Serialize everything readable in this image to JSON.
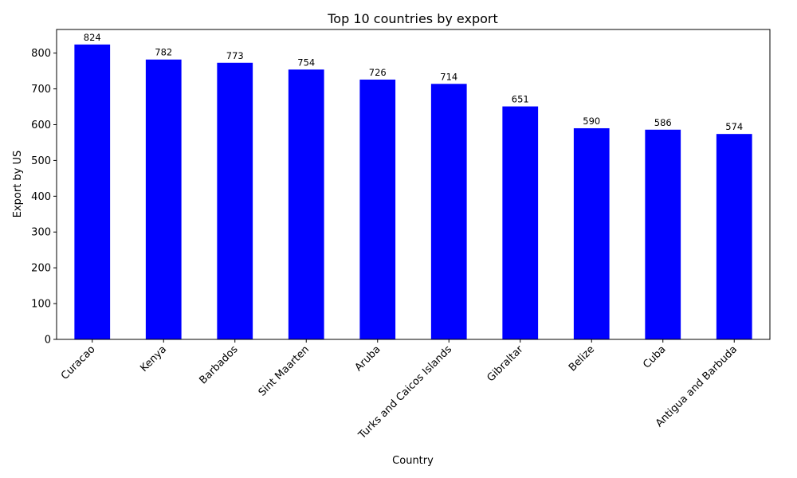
{
  "chart_data": {
    "type": "bar",
    "title": "Top 10 countries by export",
    "xlabel": "Country",
    "ylabel": "Export by US",
    "categories": [
      "Curacao",
      "Kenya",
      "Barbados",
      "Sint Maarten",
      "Aruba",
      "Turks and Caicos Islands",
      "Gibraltar",
      "Belize",
      "Cuba",
      "Antigua and Barbuda"
    ],
    "values": [
      824,
      782,
      773,
      754,
      726,
      714,
      651,
      590,
      586,
      574
    ],
    "ylim": [
      0,
      866
    ],
    "yticks": [
      0,
      100,
      200,
      300,
      400,
      500,
      600,
      700,
      800
    ],
    "grid": false,
    "bar_color": "#0000ff",
    "data_labels": true
  }
}
